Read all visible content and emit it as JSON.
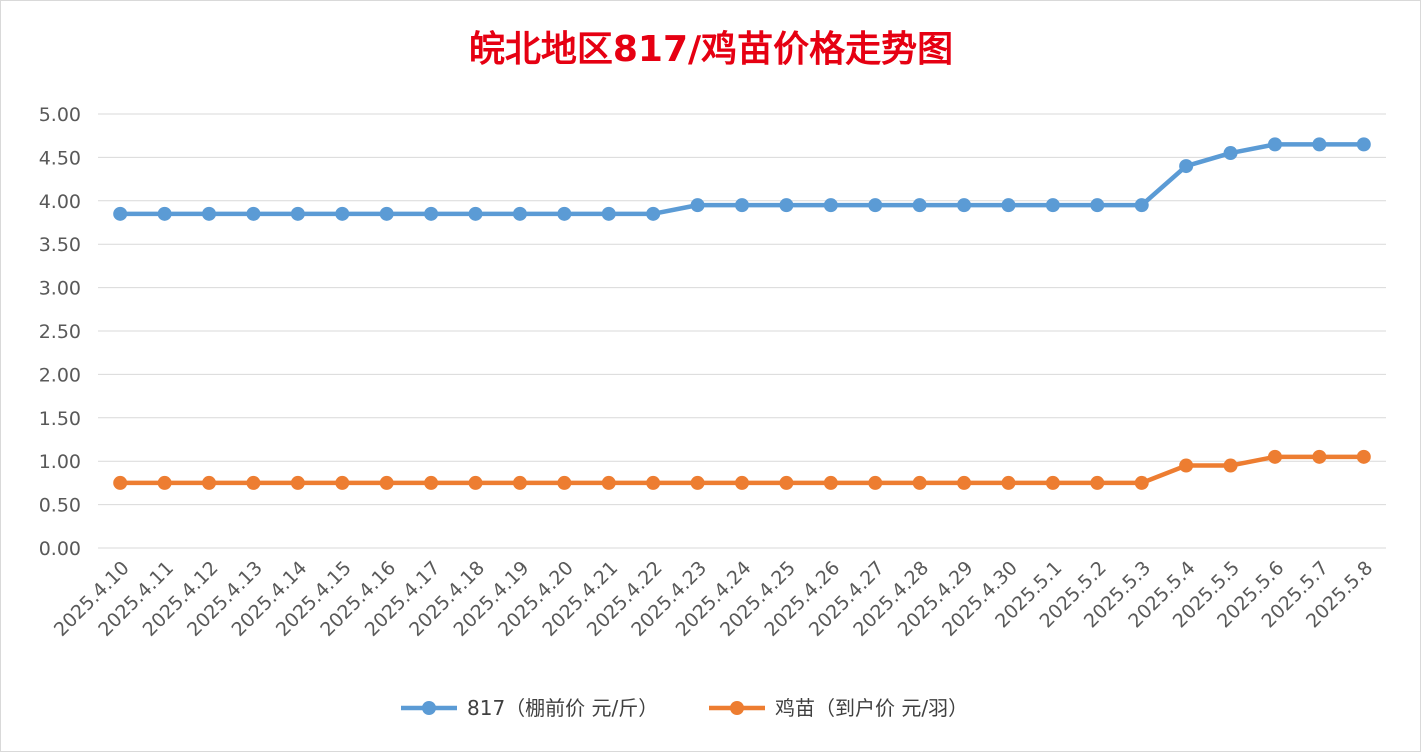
{
  "chart_data": {
    "type": "line",
    "title": "皖北地区817/鸡苗价格走势图",
    "xlabel": "",
    "ylabel": "",
    "ylim": [
      0,
      5
    ],
    "ytick_labels": [
      "0.00",
      "0.50",
      "1.00",
      "1.50",
      "2.00",
      "2.50",
      "3.00",
      "3.50",
      "4.00",
      "4.50",
      "5.00"
    ],
    "grid": true,
    "legend_position": "bottom",
    "categories": [
      "2025.4.10",
      "2025.4.11",
      "2025.4.12",
      "2025.4.13",
      "2025.4.14",
      "2025.4.15",
      "2025.4.16",
      "2025.4.17",
      "2025.4.18",
      "2025.4.19",
      "2025.4.20",
      "2025.4.21",
      "2025.4.22",
      "2025.4.23",
      "2025.4.24",
      "2025.4.25",
      "2025.4.26",
      "2025.4.27",
      "2025.4.28",
      "2025.4.29",
      "2025.4.30",
      "2025.5.1",
      "2025.5.2",
      "2025.5.3",
      "2025.5.4",
      "2025.5.5",
      "2025.5.6",
      "2025.5.7",
      "2025.5.8"
    ],
    "series": [
      {
        "name": "817（棚前价 元/斤）",
        "color": "#5b9bd5",
        "values": [
          3.85,
          3.85,
          3.85,
          3.85,
          3.85,
          3.85,
          3.85,
          3.85,
          3.85,
          3.85,
          3.85,
          3.85,
          3.85,
          3.95,
          3.95,
          3.95,
          3.95,
          3.95,
          3.95,
          3.95,
          3.95,
          3.95,
          3.95,
          3.95,
          4.4,
          4.55,
          4.65,
          4.65,
          4.65
        ]
      },
      {
        "name": "鸡苗（到户价 元/羽）",
        "color": "#ed7d31",
        "values": [
          0.75,
          0.75,
          0.75,
          0.75,
          0.75,
          0.75,
          0.75,
          0.75,
          0.75,
          0.75,
          0.75,
          0.75,
          0.75,
          0.75,
          0.75,
          0.75,
          0.75,
          0.75,
          0.75,
          0.75,
          0.75,
          0.75,
          0.75,
          0.75,
          0.95,
          0.95,
          1.05,
          1.05,
          1.05
        ]
      }
    ]
  }
}
